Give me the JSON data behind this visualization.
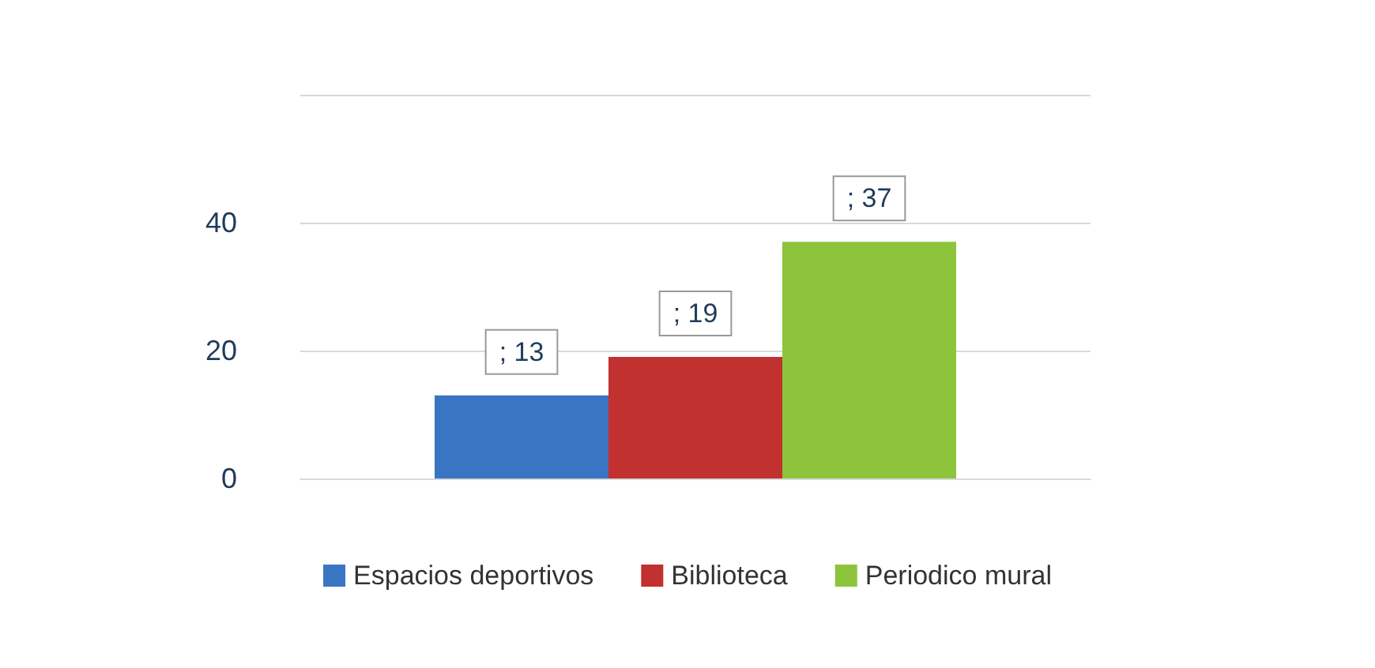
{
  "chart_data": {
    "type": "bar",
    "categories": [
      null
    ],
    "series": [
      {
        "name": "Espacios deportivos",
        "color": "#3a75c4",
        "values": [
          13
        ],
        "value_labels": [
          "; 13"
        ]
      },
      {
        "name": "Biblioteca",
        "color": "#c0312f",
        "values": [
          19
        ],
        "value_labels": [
          "; 19"
        ]
      },
      {
        "name": "Periodico mural",
        "color": "#8cc43c",
        "values": [
          37
        ],
        "value_labels": [
          "; 37"
        ]
      }
    ],
    "ylim": [
      0,
      60
    ],
    "yticks": [
      0,
      20,
      40,
      {
        "value": 60,
        "label": null
      }
    ],
    "grid": "y",
    "legend": "bottom"
  }
}
